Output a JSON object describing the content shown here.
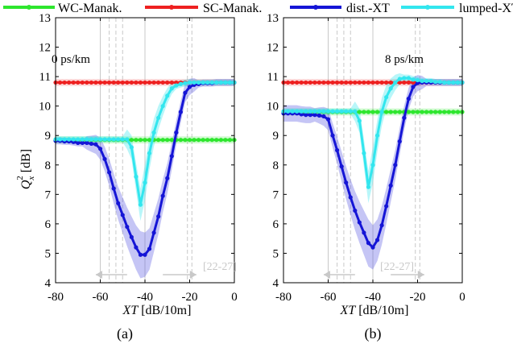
{
  "legend": [
    {
      "label": "WC-Manak.",
      "color": "#2ee62e"
    },
    {
      "label": "SC-Manak.",
      "color": "#ee2020"
    },
    {
      "label": "dist.-XT",
      "color": "#1515d6"
    },
    {
      "label": "lumped-XT",
      "color": "#33e6ee"
    }
  ],
  "axes": {
    "ylabel_main": "Q",
    "ylabel_sub": "x",
    "ylabel_sup": "2",
    "ylabel_unit": " [dB]",
    "xlabel_var": "XT",
    "xlabel_unit": " [dB/10m]"
  },
  "band_label": "[22-27]",
  "chart_data": [
    {
      "type": "line",
      "panel_label": "(a)",
      "annotation": "0 ps/km",
      "xlim": [
        -80,
        0
      ],
      "ylim": [
        4,
        13
      ],
      "xticks": [
        -80,
        -60,
        -40,
        -20,
        0
      ],
      "yticks": [
        4,
        5,
        6,
        7,
        8,
        9,
        10,
        11,
        12,
        13
      ],
      "grid": false,
      "vlines": [
        -60,
        -56,
        -53,
        -50,
        -40,
        -21,
        -19
      ],
      "series": [
        {
          "name": "WC-Manak.",
          "color": "#2ee62e",
          "x": [
            -80,
            -78,
            -76,
            -74,
            -72,
            -70,
            -68,
            -66,
            -64,
            -62,
            -60,
            -58,
            -56,
            -54,
            -52,
            -50,
            -48,
            -46,
            -44,
            -42,
            -40,
            -38,
            -36,
            -34,
            -32,
            -30,
            -28,
            -26,
            -24,
            -22,
            -20,
            -18,
            -16,
            -14,
            -12,
            -10,
            -8,
            -6,
            -4,
            -2,
            0
          ],
          "y": [
            8.85,
            8.85,
            8.85,
            8.85,
            8.85,
            8.85,
            8.85,
            8.85,
            8.85,
            8.85,
            8.85,
            8.85,
            8.85,
            8.85,
            8.85,
            8.85,
            8.85,
            8.85,
            8.85,
            8.85,
            8.85,
            8.85,
            8.85,
            8.85,
            8.85,
            8.85,
            8.85,
            8.85,
            8.85,
            8.85,
            8.85,
            8.85,
            8.85,
            8.85,
            8.85,
            8.85,
            8.85,
            8.85,
            8.85,
            8.85,
            8.85
          ]
        },
        {
          "name": "SC-Manak.",
          "color": "#ee2020",
          "x": [
            -80,
            -78,
            -76,
            -74,
            -72,
            -70,
            -68,
            -66,
            -64,
            -62,
            -60,
            -58,
            -56,
            -54,
            -52,
            -50,
            -48,
            -46,
            -44,
            -42,
            -40,
            -38,
            -36,
            -34,
            -32,
            -30,
            -28,
            -26,
            -24,
            -22,
            -20,
            -18,
            -16,
            -14,
            -12,
            -10,
            -8,
            -6,
            -4,
            -2,
            0
          ],
          "y": [
            10.8,
            10.8,
            10.8,
            10.8,
            10.8,
            10.8,
            10.8,
            10.8,
            10.8,
            10.8,
            10.8,
            10.8,
            10.8,
            10.8,
            10.8,
            10.8,
            10.8,
            10.8,
            10.8,
            10.8,
            10.8,
            10.8,
            10.8,
            10.8,
            10.8,
            10.8,
            10.8,
            10.8,
            10.8,
            10.8,
            10.8,
            10.8,
            10.8,
            10.8,
            10.8,
            10.8,
            10.8,
            10.8,
            10.8,
            10.8,
            10.8
          ]
        },
        {
          "name": "dist.-XT",
          "color": "#1515d6",
          "x": [
            -80,
            -78,
            -76,
            -74,
            -72,
            -70,
            -68,
            -66,
            -64,
            -62,
            -60,
            -58,
            -56,
            -54,
            -52,
            -50,
            -48,
            -46,
            -44,
            -42,
            -40,
            -38,
            -36,
            -34,
            -32,
            -30,
            -28,
            -26,
            -24,
            -22,
            -20,
            -18,
            -16,
            -14,
            -12,
            -10,
            -8,
            -6,
            -4,
            -2,
            0
          ],
          "y": [
            8.82,
            8.82,
            8.8,
            8.8,
            8.78,
            8.75,
            8.75,
            8.75,
            8.72,
            8.7,
            8.55,
            8.2,
            7.75,
            7.2,
            6.7,
            6.3,
            5.9,
            5.55,
            5.2,
            4.95,
            4.95,
            5.15,
            5.7,
            6.25,
            6.95,
            7.55,
            8.3,
            9.1,
            9.8,
            10.45,
            10.65,
            10.72,
            10.75,
            10.78,
            10.78,
            10.78,
            10.8,
            10.8,
            10.8,
            10.8,
            10.8
          ]
        },
        {
          "name": "lumped-XT",
          "color": "#33e6ee",
          "x": [
            -80,
            -78,
            -76,
            -74,
            -72,
            -70,
            -68,
            -66,
            -64,
            -62,
            -60,
            -58,
            -56,
            -54,
            -52,
            -50,
            -48,
            -46,
            -44,
            -42,
            -40,
            -38,
            -36,
            -34,
            -32,
            -30,
            -28,
            -26,
            -24,
            -22,
            -20,
            -18,
            -16,
            -14,
            -12,
            -10,
            -8,
            -6,
            -4,
            -2,
            0
          ],
          "y": [
            8.87,
            8.87,
            8.87,
            8.87,
            8.87,
            8.87,
            8.87,
            8.87,
            8.87,
            8.87,
            8.87,
            8.87,
            8.87,
            8.87,
            8.87,
            8.87,
            8.87,
            8.6,
            7.6,
            6.65,
            7.4,
            8.4,
            9.1,
            9.6,
            10.0,
            10.35,
            10.6,
            10.7,
            10.75,
            10.78,
            10.8,
            10.8,
            10.8,
            10.8,
            10.8,
            10.8,
            10.8,
            10.8,
            10.8,
            10.8,
            10.8
          ]
        }
      ]
    },
    {
      "type": "line",
      "panel_label": "(b)",
      "annotation": "8 ps/km",
      "xlim": [
        -80,
        0
      ],
      "ylim": [
        4,
        13
      ],
      "xticks": [
        -80,
        -60,
        -40,
        -20,
        0
      ],
      "yticks": [
        4,
        5,
        6,
        7,
        8,
        9,
        10,
        11,
        12,
        13
      ],
      "grid": false,
      "vlines": [
        -60,
        -56,
        -53,
        -50,
        -40,
        -21,
        -19
      ],
      "series": [
        {
          "name": "WC-Manak.",
          "color": "#2ee62e",
          "x": [
            -80,
            -78,
            -76,
            -74,
            -72,
            -70,
            -68,
            -66,
            -64,
            -62,
            -60,
            -58,
            -56,
            -54,
            -52,
            -50,
            -48,
            -46,
            -44,
            -42,
            -40,
            -38,
            -36,
            -34,
            -32,
            -30,
            -28,
            -26,
            -24,
            -22,
            -20,
            -18,
            -16,
            -14,
            -12,
            -10,
            -8,
            -6,
            -4,
            -2,
            0
          ],
          "y": [
            9.8,
            9.8,
            9.8,
            9.8,
            9.8,
            9.8,
            9.8,
            9.8,
            9.8,
            9.8,
            9.8,
            9.8,
            9.8,
            9.8,
            9.8,
            9.8,
            9.8,
            9.8,
            9.8,
            9.8,
            9.8,
            9.8,
            9.8,
            9.8,
            9.8,
            9.8,
            9.8,
            9.8,
            9.8,
            9.8,
            9.8,
            9.8,
            9.8,
            9.8,
            9.8,
            9.8,
            9.8,
            9.8,
            9.8,
            9.8,
            9.8
          ]
        },
        {
          "name": "SC-Manak.",
          "color": "#ee2020",
          "x": [
            -80,
            -78,
            -76,
            -74,
            -72,
            -70,
            -68,
            -66,
            -64,
            -62,
            -60,
            -58,
            -56,
            -54,
            -52,
            -50,
            -48,
            -46,
            -44,
            -42,
            -40,
            -38,
            -36,
            -34,
            -32,
            -30,
            -28,
            -26,
            -24,
            -22,
            -20,
            -18,
            -16,
            -14,
            -12,
            -10,
            -8,
            -6,
            -4,
            -2,
            0
          ],
          "y": [
            10.8,
            10.8,
            10.8,
            10.8,
            10.8,
            10.8,
            10.8,
            10.8,
            10.8,
            10.8,
            10.8,
            10.8,
            10.8,
            10.8,
            10.8,
            10.8,
            10.8,
            10.8,
            10.8,
            10.8,
            10.8,
            10.8,
            10.8,
            10.8,
            10.8,
            10.8,
            10.8,
            10.8,
            10.8,
            10.8,
            10.8,
            10.8,
            10.8,
            10.8,
            10.8,
            10.8,
            10.8,
            10.8,
            10.8,
            10.8,
            10.8
          ]
        },
        {
          "name": "dist.-XT",
          "color": "#1515d6",
          "x": [
            -80,
            -78,
            -76,
            -74,
            -72,
            -70,
            -68,
            -66,
            -64,
            -62,
            -60,
            -58,
            -56,
            -54,
            -52,
            -50,
            -48,
            -46,
            -44,
            -42,
            -40,
            -38,
            -36,
            -34,
            -32,
            -30,
            -28,
            -26,
            -24,
            -22,
            -20,
            -18,
            -16,
            -14,
            -12,
            -10,
            -8,
            -6,
            -4,
            -2,
            0
          ],
          "y": [
            9.75,
            9.75,
            9.75,
            9.75,
            9.72,
            9.7,
            9.7,
            9.7,
            9.68,
            9.65,
            9.55,
            9.0,
            8.5,
            7.95,
            7.4,
            6.9,
            6.45,
            6.05,
            5.7,
            5.35,
            5.2,
            5.45,
            5.95,
            6.6,
            7.3,
            8.0,
            8.8,
            9.6,
            10.25,
            10.65,
            10.78,
            10.8,
            10.8,
            10.8,
            10.8,
            10.8,
            10.8,
            10.8,
            10.8,
            10.8,
            10.8
          ]
        },
        {
          "name": "lumped-XT",
          "color": "#33e6ee",
          "x": [
            -80,
            -78,
            -76,
            -74,
            -72,
            -70,
            -68,
            -66,
            -64,
            -62,
            -60,
            -58,
            -56,
            -54,
            -52,
            -50,
            -48,
            -46,
            -44,
            -42,
            -40,
            -38,
            -36,
            -34,
            -32,
            -30,
            -28,
            -26,
            -24,
            -22,
            -20,
            -18,
            -16,
            -14,
            -12,
            -10,
            -8,
            -6,
            -4,
            -2,
            0
          ],
          "y": [
            9.82,
            9.82,
            9.82,
            9.82,
            9.82,
            9.82,
            9.82,
            9.82,
            9.82,
            9.82,
            9.82,
            9.82,
            9.82,
            9.82,
            9.82,
            9.82,
            9.82,
            9.5,
            8.4,
            7.25,
            8.0,
            9.0,
            9.8,
            10.3,
            10.6,
            10.8,
            10.92,
            10.95,
            10.95,
            10.9,
            10.88,
            10.85,
            10.85,
            10.85,
            10.82,
            10.82,
            10.8,
            10.8,
            10.8,
            10.8,
            10.8
          ]
        }
      ]
    }
  ]
}
